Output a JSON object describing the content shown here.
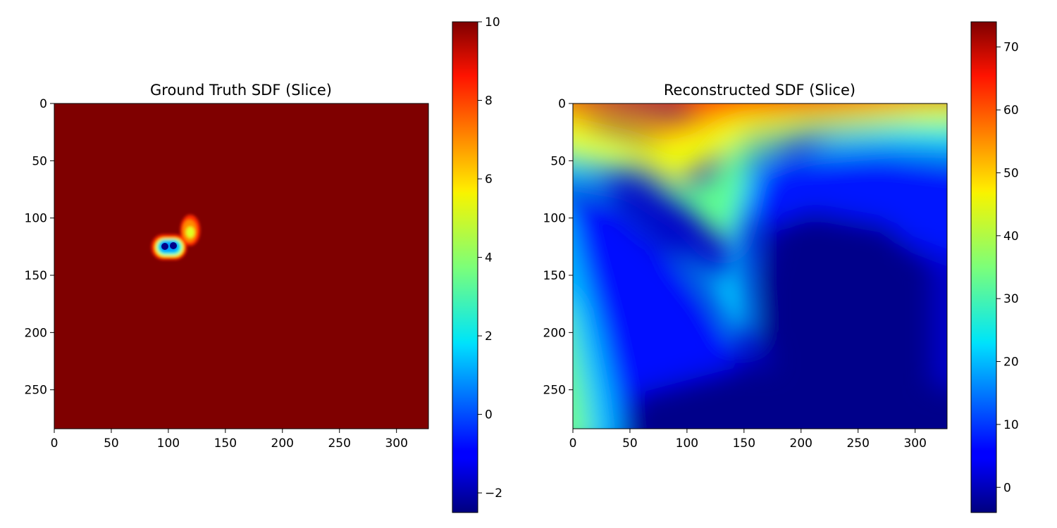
{
  "chart_data": [
    {
      "type": "heatmap",
      "title": "Ground Truth SDF (Slice)",
      "xlabel": "",
      "ylabel": "",
      "xlim": [
        0,
        328
      ],
      "ylim": [
        284,
        0
      ],
      "xticks": [
        0,
        50,
        100,
        150,
        200,
        250,
        300
      ],
      "yticks": [
        0,
        50,
        100,
        150,
        200,
        250
      ],
      "colormap": "jet",
      "colorbar": {
        "min": -2.5,
        "max": 10,
        "ticks": [
          -2,
          0,
          2,
          4,
          6,
          8,
          10
        ]
      },
      "background_value": 10,
      "features": [
        {
          "description": "left blob",
          "x": 97,
          "y": 124,
          "min_value": -2.3
        },
        {
          "description": "right blob",
          "x": 105,
          "y": 123,
          "min_value": -2.3
        },
        {
          "description": "upper lobe",
          "x": 119,
          "y": 108,
          "min_value": 6
        }
      ]
    },
    {
      "type": "heatmap",
      "title": "Reconstructed SDF (Slice)",
      "xlabel": "",
      "ylabel": "",
      "xlim": [
        0,
        328
      ],
      "ylim": [
        284,
        0
      ],
      "xticks": [
        0,
        50,
        100,
        150,
        200,
        250,
        300
      ],
      "yticks": [
        0,
        50,
        100,
        150,
        200,
        250
      ],
      "colormap": "jet",
      "colorbar": {
        "min": -4,
        "max": 74,
        "ticks": [
          0,
          10,
          20,
          30,
          40,
          50,
          60,
          70
        ]
      },
      "value_range": [
        -3.5,
        73
      ]
    }
  ]
}
